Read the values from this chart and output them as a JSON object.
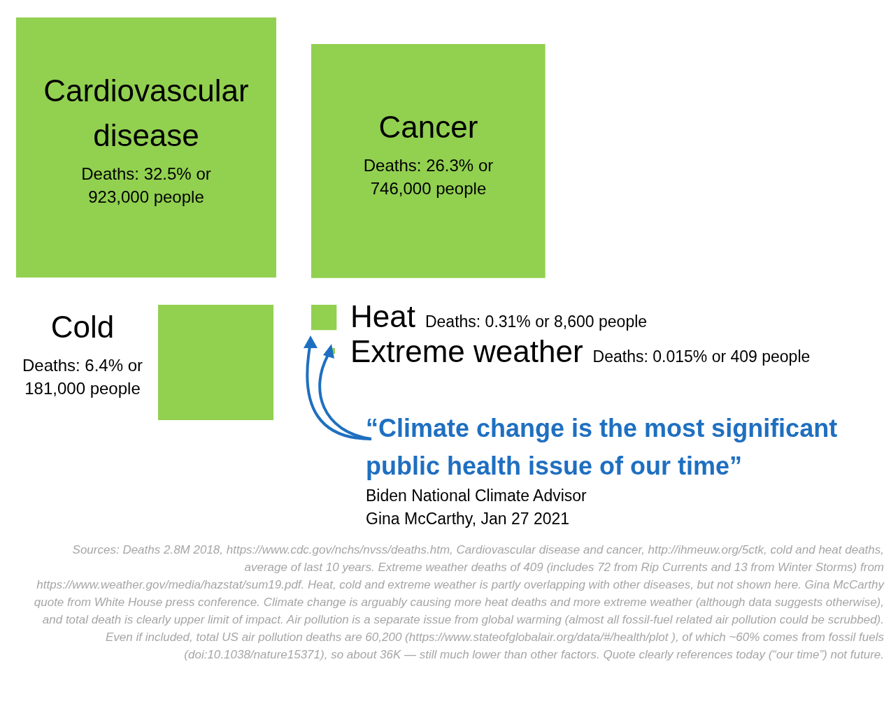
{
  "chart_data": {
    "type": "other",
    "color": "#92d050",
    "categories": [
      "Cardiovascular disease",
      "Cancer",
      "Cold",
      "Heat",
      "Extreme weather"
    ],
    "values": [
      32.5,
      26.3,
      6.4,
      0.31,
      0.015
    ],
    "value_labels": [
      "Deaths: 32.5% or 923,000 people",
      "Deaths: 26.3% or 746,000 people",
      "Deaths: 6.4% or 181,000 people",
      "Deaths: 0.31% or 8,600 people",
      "Deaths: 0.015% or 409 people"
    ],
    "annotations": [
      "“Climate change is the most significant public health issue of our time”",
      "Biden National Climate Advisor\nGina McCarthy, Jan 27 2021",
      "Sources: Deaths 2.8M 2018, https://www.cdc.gov/nchs/nvss/deaths.htm, Cardiovascular disease and cancer, http://ihmeuw.org/5ctk, cold and heat deaths, average of last 10 years. Extreme weather deaths of 409 (includes 72 from Rip Currents and 13 from Winter Storms) from https://www.weather.gov/media/hazstat/sum19.pdf. Heat, cold and extreme weather is partly overlapping with other diseases, but not shown here. Gina McCarthy quote from White House press conference. Climate change is arguably causing more heat deaths and more extreme weather (although data suggests otherwise), and total death is clearly upper limit of impact. Air pollution is a separate issue from global warming (almost all fossil-fuel related air pollution could be scrubbed). Even if included, total US air pollution deaths are 60,200 (https://www.stateofglobalair.org/data/#/health/plot ), of which ~60% comes from fossil fuels (doi:10.1038/nature15371), so about 36K — still much lower than other factors. Quote clearly references today (“our time”) not future."
    ]
  }
}
